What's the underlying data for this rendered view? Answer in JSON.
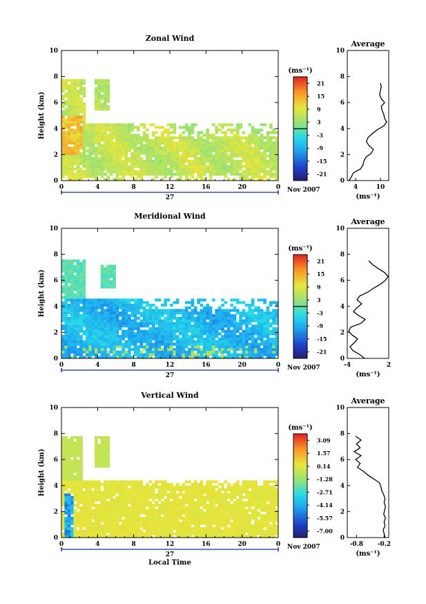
{
  "chart_data": [
    {
      "type": "heatmap",
      "title": "Zonal Wind",
      "ylabel": "Height (km)",
      "xlabel": "",
      "xlim": [
        0,
        24
      ],
      "ylim": [
        0,
        10
      ],
      "xticks": [
        "0",
        "4",
        "8",
        "12",
        "16",
        "20",
        "0"
      ],
      "yticks": [
        "0",
        "2",
        "4",
        "6",
        "8",
        "10"
      ],
      "day_label": "27",
      "date_label": "Nov 2007",
      "colorbar": {
        "unit": "(ms⁻¹)",
        "labels": [
          "21",
          "15",
          "9",
          "3",
          "-3",
          "-9",
          "-15",
          "-21"
        ],
        "range": [
          -24,
          24
        ]
      },
      "profile": {
        "title": "Average",
        "xlabel": "(ms⁻¹)",
        "xticks": [
          "4",
          "10"
        ],
        "xlim": [
          2,
          12
        ],
        "heights": [
          0.0,
          0.3,
          0.6,
          0.9,
          1.2,
          1.5,
          1.8,
          2.1,
          2.4,
          2.7,
          3.0,
          3.3,
          3.6,
          3.9,
          4.2,
          4.5,
          4.8,
          5.1,
          5.4,
          5.7,
          6.0,
          6.3,
          6.6,
          6.9,
          7.2,
          7.5
        ],
        "values": [
          2.4,
          3.0,
          3.5,
          5.2,
          5.8,
          6.0,
          6.5,
          7.8,
          8.3,
          7.2,
          6.6,
          7.0,
          8.0,
          9.2,
          10.8,
          11.5,
          11.0,
          10.8,
          10.4,
          10.2,
          11.0,
          10.2,
          9.8,
          10.0,
          10.2,
          10.0
        ]
      }
    },
    {
      "type": "heatmap",
      "title": "Meridional Wind",
      "ylabel": "Height (km)",
      "xlabel": "",
      "xlim": [
        0,
        24
      ],
      "ylim": [
        0,
        10
      ],
      "xticks": [
        "0",
        "4",
        "8",
        "12",
        "16",
        "20",
        "0"
      ],
      "yticks": [
        "0",
        "2",
        "4",
        "6",
        "8",
        "10"
      ],
      "day_label": "27",
      "date_label": "Nov 2007",
      "colorbar": {
        "unit": "(ms⁻¹)",
        "labels": [
          "21",
          "15",
          "9",
          "3",
          "-3",
          "-9",
          "-15",
          "-21"
        ],
        "range": [
          -24,
          24
        ]
      },
      "profile": {
        "title": "Average",
        "xlabel": "(ms⁻¹)",
        "xticks": [
          "-4",
          "2"
        ],
        "xlim": [
          -4,
          2
        ],
        "heights": [
          0.0,
          0.3,
          0.6,
          0.9,
          1.2,
          1.5,
          1.8,
          2.1,
          2.4,
          2.7,
          3.0,
          3.3,
          3.6,
          3.9,
          4.2,
          4.5,
          4.8,
          5.1,
          5.4,
          5.7,
          6.0,
          6.3,
          6.6,
          6.9,
          7.2,
          7.5
        ],
        "values": [
          -1.5,
          -2.2,
          -3.2,
          -3.6,
          -3.0,
          -2.5,
          -3.3,
          -3.8,
          -3.5,
          -2.0,
          -1.4,
          -2.4,
          -3.1,
          -2.6,
          -1.9,
          -2.6,
          -2.2,
          -1.0,
          -0.2,
          0.8,
          1.5,
          1.9,
          1.4,
          0.5,
          -0.3,
          -0.9
        ]
      }
    },
    {
      "type": "heatmap",
      "title": "Vertical Wind",
      "ylabel": "Height (km)",
      "xlabel": "Local Time",
      "xlim": [
        0,
        24
      ],
      "ylim": [
        0,
        10
      ],
      "xticks": [
        "0",
        "4",
        "8",
        "12",
        "16",
        "20",
        "0"
      ],
      "yticks": [
        "0",
        "2",
        "4",
        "6",
        "8",
        "10"
      ],
      "day_label": "27",
      "date_label": "Nov 2007",
      "colorbar": {
        "unit": "(ms⁻¹)",
        "labels": [
          "3.09",
          "1.57",
          "0.14",
          "-1.28",
          "-2.71",
          "-4.14",
          "-5.57",
          "-7.00"
        ],
        "range": [
          -7.71,
          3.8
        ]
      },
      "profile": {
        "title": "Average",
        "xlabel": "(ms⁻¹)",
        "xticks": [
          "-0.8",
          "-0.2"
        ],
        "xlim": [
          -1.0,
          -0.1
        ],
        "heights": [
          0.0,
          0.3,
          0.6,
          0.9,
          1.2,
          1.5,
          1.8,
          2.1,
          2.4,
          2.7,
          3.0,
          3.3,
          3.6,
          3.9,
          4.2,
          4.5,
          4.8,
          5.1,
          5.4,
          5.7,
          6.0,
          6.3,
          6.6,
          6.9,
          7.2,
          7.5,
          7.8
        ],
        "values": [
          -0.18,
          -0.2,
          -0.22,
          -0.18,
          -0.2,
          -0.17,
          -0.21,
          -0.19,
          -0.17,
          -0.2,
          -0.18,
          -0.21,
          -0.25,
          -0.27,
          -0.3,
          -0.42,
          -0.55,
          -0.65,
          -0.78,
          -0.72,
          -0.82,
          -0.7,
          -0.85,
          -0.72,
          -0.8,
          -0.7,
          -0.82
        ]
      }
    }
  ]
}
